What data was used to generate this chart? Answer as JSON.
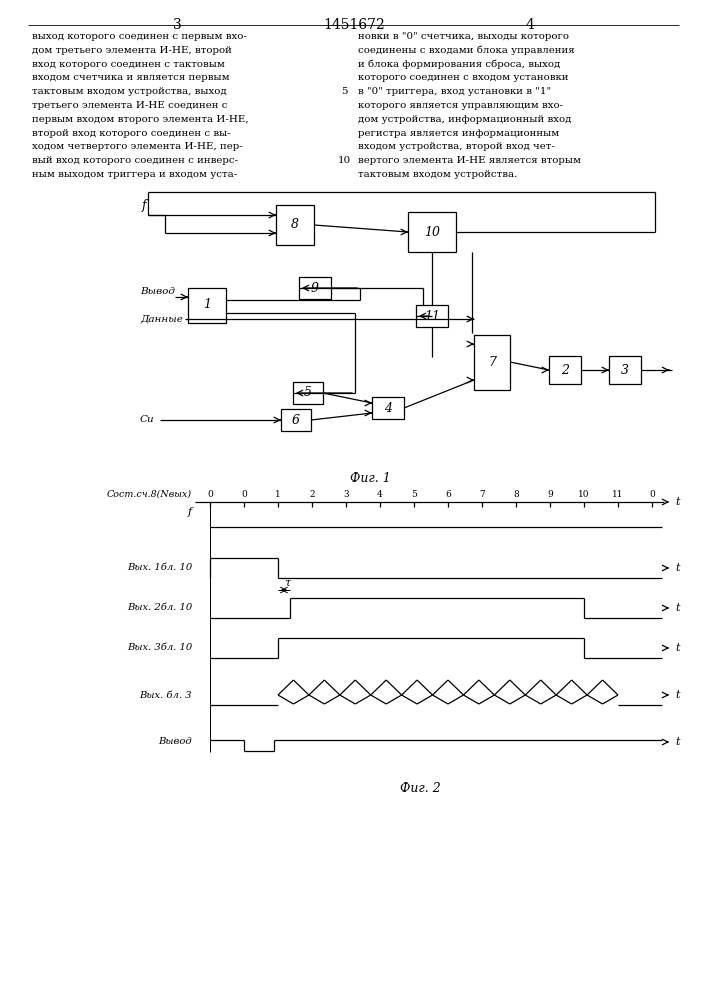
{
  "page_number_left": "3",
  "page_number_center": "1451672",
  "page_number_right": "4",
  "text_left": [
    "выход которого соединен с первым вхо-",
    "дом третьего элемента И-НЕ, второй",
    "вход которого соединен с тактовым",
    "входом счетчика и является первым",
    "тактовым входом устройства, выход",
    "третьего элемента И-НЕ соединен с",
    "первым входом второго элемента И-НЕ,",
    "второй вход которого соединен с вы-",
    "ходом четвертого элемента И-НЕ, пер-",
    "вый вход которого соединен с инверс-",
    "ным выходом триггера и входом уста-"
  ],
  "text_right": [
    "новки в \"0\" счетчика, выходы которого",
    "соединены с входами блока управления",
    "и блока формирования сброса, выход",
    "которого соединен с входом установки",
    "в \"0\" триггера, вход установки в \"1\"",
    "которого является управляющим вхо-",
    "дом устройства, информационный вход",
    "регистра является информационным",
    "входом устройства, второй вход чет-",
    "вертого элемента И-НЕ является вторым",
    "тактовым входом устройства."
  ],
  "fig1_caption": "Фиг. 1",
  "fig2_caption": "Фиг. 2",
  "timing_labels": [
    "Сост.сч.8(Nвых)",
    "f",
    "Вых. 1бл. 10",
    "Вых. 2бл. 10",
    "Вых. 3бл. 10",
    "Вых. бл. 3",
    "Вывод"
  ],
  "timing_ticks": [
    "0",
    "0",
    "1",
    "2",
    "3",
    "4",
    "5",
    "6",
    "7",
    "8",
    "9",
    "10",
    "11",
    "0"
  ],
  "bg_color": "#ffffff",
  "line_color": "#000000"
}
